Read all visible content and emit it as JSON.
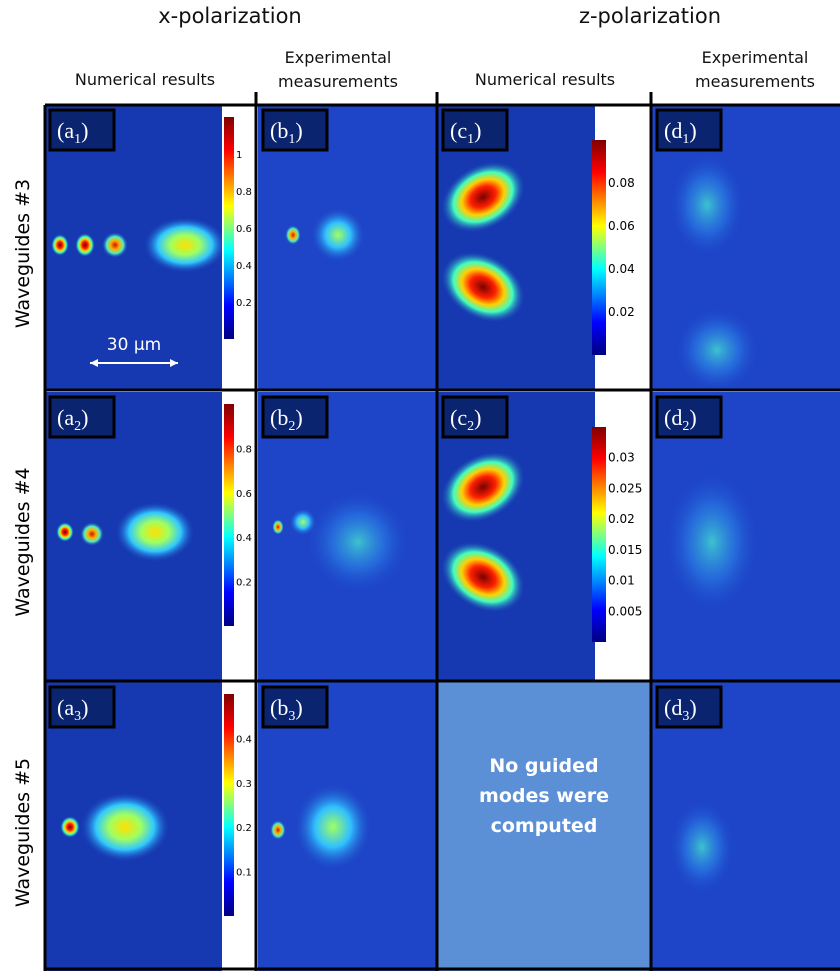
{
  "headers": [
    {
      "title": "x-polarization",
      "columns": [
        "Numerical results",
        "Experimental measurements"
      ]
    },
    {
      "title": "z-polarization",
      "columns": [
        "Numerical results",
        "Experimental measurements"
      ]
    }
  ],
  "rows": [
    {
      "label": "Waveguides #3",
      "panels": [
        {
          "label": [
            "(a",
            "1",
            ")"
          ],
          "colorbar": [
            "1",
            "0.8",
            "0.6",
            "0.4",
            "0.2"
          ],
          "scale_bar": "30 μm"
        },
        {
          "label": [
            "(b",
            "1",
            ")"
          ]
        },
        {
          "label": [
            "(c",
            "1",
            ")"
          ],
          "colorbar": [
            "0.08",
            "0.06",
            "0.04",
            "0.02"
          ]
        },
        {
          "label": [
            "(d",
            "1",
            ")"
          ]
        }
      ]
    },
    {
      "label": "Waveguides #4",
      "panels": [
        {
          "label": [
            "(a",
            "2",
            ")"
          ],
          "colorbar": [
            "0.8",
            "0.6",
            "0.4",
            "0.2"
          ]
        },
        {
          "label": [
            "(b",
            "2",
            ")"
          ]
        },
        {
          "label": [
            "(c",
            "2",
            ")"
          ],
          "colorbar": [
            "0.03",
            "0.025",
            "0.02",
            "0.015",
            "0.01",
            "0.005"
          ]
        },
        {
          "label": [
            "(d",
            "2",
            ")"
          ]
        }
      ]
    },
    {
      "label": "Waveguides #5",
      "panels": [
        {
          "label": [
            "(a",
            "3",
            ")"
          ],
          "colorbar": [
            "0.4",
            "0.3",
            "0.2",
            "0.1"
          ]
        },
        {
          "label": [
            "(b",
            "3",
            ")"
          ]
        },
        {
          "message": [
            "No guided",
            "modes were",
            "computed"
          ]
        },
        {
          "label": [
            "(d",
            "3",
            ")"
          ]
        }
      ]
    }
  ]
}
